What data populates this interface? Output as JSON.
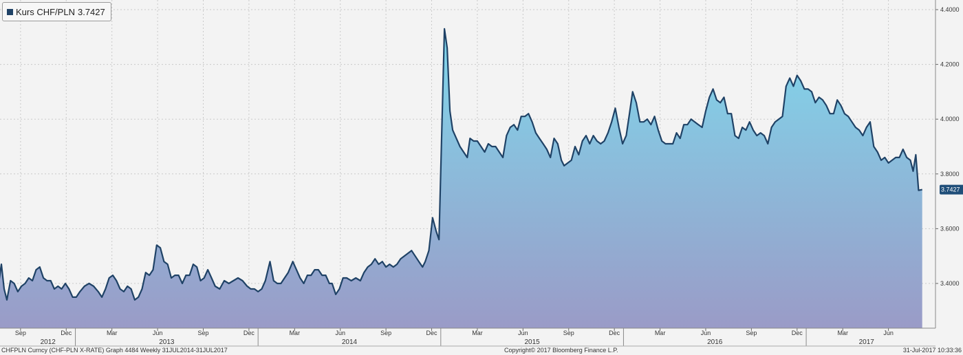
{
  "legend": {
    "label": "Kurs CHF/PLN",
    "last_value": "3.7427"
  },
  "footer": {
    "left": "CHFPLN Curncy (CHF-PLN X-RATE) Graph 4484  Weekly 31JUL2014-31JUL2017",
    "center": "Copyright© 2017 Bloomberg Finance L.P.",
    "right": "31-Jul-2017 10:33:36"
  },
  "colors": {
    "line": "#1f4266",
    "fill_top": "#7fd8ec",
    "fill_bottom": "#9a9bc7",
    "last_badge": "#1f4e79"
  },
  "chart_data": {
    "type": "area",
    "title": "",
    "xlabel": "",
    "ylabel": "",
    "ylim": [
      3.25,
      4.4
    ],
    "yticks": [
      "3.4000",
      "3.6000",
      "3.8000",
      "4.0000",
      "4.2000",
      "4.4000"
    ],
    "grid": true,
    "legend_position": "top-left",
    "month_ticks": [
      {
        "m": 2012.7,
        "label": "Sep"
      },
      {
        "m": 2012.95,
        "label": "Dec"
      },
      {
        "m": 2013.2,
        "label": "Mar"
      },
      {
        "m": 2013.45,
        "label": "Jun"
      },
      {
        "m": 2013.7,
        "label": "Sep"
      },
      {
        "m": 2013.95,
        "label": "Dec"
      },
      {
        "m": 2014.2,
        "label": "Mar"
      },
      {
        "m": 2014.45,
        "label": "Jun"
      },
      {
        "m": 2014.7,
        "label": "Sep"
      },
      {
        "m": 2014.95,
        "label": "Dec"
      },
      {
        "m": 2015.2,
        "label": "Mar"
      },
      {
        "m": 2015.45,
        "label": "Jun"
      },
      {
        "m": 2015.7,
        "label": "Sep"
      },
      {
        "m": 2015.95,
        "label": "Dec"
      },
      {
        "m": 2016.2,
        "label": "Mar"
      },
      {
        "m": 2016.45,
        "label": "Jun"
      },
      {
        "m": 2016.7,
        "label": "Sep"
      },
      {
        "m": 2016.95,
        "label": "Dec"
      },
      {
        "m": 2017.2,
        "label": "Mar"
      },
      {
        "m": 2017.45,
        "label": "Jun"
      }
    ],
    "years": [
      {
        "m": 2012.85,
        "label": "2012"
      },
      {
        "m": 2013.5,
        "label": "2013"
      },
      {
        "m": 2014.5,
        "label": "2014"
      },
      {
        "m": 2015.5,
        "label": "2015"
      },
      {
        "m": 2016.5,
        "label": "2016"
      },
      {
        "m": 2017.33,
        "label": "2017"
      }
    ],
    "year_separators": [
      2013.0,
      2014.0,
      2015.0,
      2016.0,
      2017.0
    ],
    "series": [
      {
        "name": "Kurs CHF/PLN",
        "points": [
          [
            2012.58,
            3.4
          ],
          [
            2012.595,
            3.47
          ],
          [
            2012.61,
            3.38
          ],
          [
            2012.625,
            3.34
          ],
          [
            2012.645,
            3.41
          ],
          [
            2012.665,
            3.4
          ],
          [
            2012.685,
            3.37
          ],
          [
            2012.705,
            3.39
          ],
          [
            2012.725,
            3.4
          ],
          [
            2012.745,
            3.42
          ],
          [
            2012.765,
            3.41
          ],
          [
            2012.785,
            3.45
          ],
          [
            2012.805,
            3.46
          ],
          [
            2012.825,
            3.42
          ],
          [
            2012.845,
            3.41
          ],
          [
            2012.865,
            3.41
          ],
          [
            2012.885,
            3.38
          ],
          [
            2012.905,
            3.39
          ],
          [
            2012.925,
            3.38
          ],
          [
            2012.945,
            3.4
          ],
          [
            2012.965,
            3.38
          ],
          [
            2012.985,
            3.35
          ],
          [
            2013.005,
            3.35
          ],
          [
            2013.025,
            3.37
          ],
          [
            2013.05,
            3.39
          ],
          [
            2013.075,
            3.4
          ],
          [
            2013.1,
            3.39
          ],
          [
            2013.125,
            3.37
          ],
          [
            2013.145,
            3.35
          ],
          [
            2013.165,
            3.38
          ],
          [
            2013.185,
            3.42
          ],
          [
            2013.205,
            3.43
          ],
          [
            2013.225,
            3.41
          ],
          [
            2013.245,
            3.38
          ],
          [
            2013.265,
            3.37
          ],
          [
            2013.285,
            3.39
          ],
          [
            2013.305,
            3.38
          ],
          [
            2013.325,
            3.34
          ],
          [
            2013.345,
            3.35
          ],
          [
            2013.365,
            3.38
          ],
          [
            2013.385,
            3.44
          ],
          [
            2013.405,
            3.43
          ],
          [
            2013.425,
            3.45
          ],
          [
            2013.445,
            3.54
          ],
          [
            2013.465,
            3.53
          ],
          [
            2013.485,
            3.48
          ],
          [
            2013.505,
            3.47
          ],
          [
            2013.525,
            3.42
          ],
          [
            2013.545,
            3.43
          ],
          [
            2013.565,
            3.43
          ],
          [
            2013.585,
            3.4
          ],
          [
            2013.605,
            3.43
          ],
          [
            2013.625,
            3.43
          ],
          [
            2013.645,
            3.47
          ],
          [
            2013.665,
            3.46
          ],
          [
            2013.685,
            3.41
          ],
          [
            2013.705,
            3.42
          ],
          [
            2013.725,
            3.45
          ],
          [
            2013.745,
            3.42
          ],
          [
            2013.765,
            3.39
          ],
          [
            2013.79,
            3.38
          ],
          [
            2013.815,
            3.41
          ],
          [
            2013.84,
            3.4
          ],
          [
            2013.865,
            3.41
          ],
          [
            2013.89,
            3.42
          ],
          [
            2013.915,
            3.41
          ],
          [
            2013.94,
            3.39
          ],
          [
            2013.96,
            3.38
          ],
          [
            2013.98,
            3.38
          ],
          [
            2014.0,
            3.37
          ],
          [
            2014.02,
            3.38
          ],
          [
            2014.04,
            3.41
          ],
          [
            2014.065,
            3.48
          ],
          [
            2014.085,
            3.41
          ],
          [
            2014.105,
            3.4
          ],
          [
            2014.125,
            3.4
          ],
          [
            2014.145,
            3.42
          ],
          [
            2014.165,
            3.44
          ],
          [
            2014.19,
            3.48
          ],
          [
            2014.21,
            3.45
          ],
          [
            2014.23,
            3.42
          ],
          [
            2014.25,
            3.4
          ],
          [
            2014.27,
            3.43
          ],
          [
            2014.29,
            3.43
          ],
          [
            2014.31,
            3.45
          ],
          [
            2014.33,
            3.45
          ],
          [
            2014.35,
            3.43
          ],
          [
            2014.37,
            3.43
          ],
          [
            2014.39,
            3.4
          ],
          [
            2014.405,
            3.4
          ],
          [
            2014.425,
            3.36
          ],
          [
            2014.445,
            3.38
          ],
          [
            2014.465,
            3.42
          ],
          [
            2014.485,
            3.42
          ],
          [
            2014.51,
            3.41
          ],
          [
            2014.535,
            3.42
          ],
          [
            2014.56,
            3.41
          ],
          [
            2014.58,
            3.44
          ],
          [
            2014.6,
            3.46
          ],
          [
            2014.62,
            3.47
          ],
          [
            2014.64,
            3.49
          ],
          [
            2014.66,
            3.47
          ],
          [
            2014.68,
            3.48
          ],
          [
            2014.7,
            3.46
          ],
          [
            2014.72,
            3.47
          ],
          [
            2014.74,
            3.46
          ],
          [
            2014.76,
            3.47
          ],
          [
            2014.78,
            3.49
          ],
          [
            2014.8,
            3.5
          ],
          [
            2014.82,
            3.51
          ],
          [
            2014.84,
            3.52
          ],
          [
            2014.86,
            3.5
          ],
          [
            2014.88,
            3.48
          ],
          [
            2014.9,
            3.46
          ],
          [
            2014.915,
            3.48
          ],
          [
            2014.935,
            3.52
          ],
          [
            2014.955,
            3.64
          ],
          [
            2014.975,
            3.59
          ],
          [
            2014.99,
            3.56
          ],
          [
            2015.02,
            4.33
          ],
          [
            2015.035,
            4.26
          ],
          [
            2015.05,
            4.03
          ],
          [
            2015.065,
            3.96
          ],
          [
            2015.085,
            3.93
          ],
          [
            2015.105,
            3.9
          ],
          [
            2015.125,
            3.88
          ],
          [
            2015.145,
            3.86
          ],
          [
            2015.16,
            3.93
          ],
          [
            2015.18,
            3.92
          ],
          [
            2015.2,
            3.92
          ],
          [
            2015.22,
            3.9
          ],
          [
            2015.24,
            3.88
          ],
          [
            2015.26,
            3.91
          ],
          [
            2015.28,
            3.9
          ],
          [
            2015.3,
            3.9
          ],
          [
            2015.32,
            3.88
          ],
          [
            2015.34,
            3.86
          ],
          [
            2015.36,
            3.94
          ],
          [
            2015.38,
            3.97
          ],
          [
            2015.4,
            3.98
          ],
          [
            2015.42,
            3.96
          ],
          [
            2015.44,
            4.01
          ],
          [
            2015.46,
            4.01
          ],
          [
            2015.48,
            4.02
          ],
          [
            2015.5,
            3.99
          ],
          [
            2015.52,
            3.95
          ],
          [
            2015.54,
            3.93
          ],
          [
            2015.56,
            3.91
          ],
          [
            2015.58,
            3.89
          ],
          [
            2015.6,
            3.86
          ],
          [
            2015.62,
            3.93
          ],
          [
            2015.64,
            3.91
          ],
          [
            2015.66,
            3.85
          ],
          [
            2015.675,
            3.83
          ],
          [
            2015.695,
            3.84
          ],
          [
            2015.715,
            3.85
          ],
          [
            2015.735,
            3.9
          ],
          [
            2015.755,
            3.87
          ],
          [
            2015.775,
            3.92
          ],
          [
            2015.795,
            3.94
          ],
          [
            2015.815,
            3.91
          ],
          [
            2015.835,
            3.94
          ],
          [
            2015.855,
            3.92
          ],
          [
            2015.875,
            3.91
          ],
          [
            2015.895,
            3.92
          ],
          [
            2015.915,
            3.95
          ],
          [
            2015.935,
            3.99
          ],
          [
            2015.955,
            4.04
          ],
          [
            2015.975,
            3.97
          ],
          [
            2015.995,
            3.91
          ],
          [
            2016.015,
            3.94
          ],
          [
            2016.035,
            4.03
          ],
          [
            2016.05,
            4.1
          ],
          [
            2016.07,
            4.06
          ],
          [
            2016.09,
            3.99
          ],
          [
            2016.11,
            3.99
          ],
          [
            2016.13,
            4.0
          ],
          [
            2016.15,
            3.98
          ],
          [
            2016.17,
            4.01
          ],
          [
            2016.19,
            3.96
          ],
          [
            2016.21,
            3.92
          ],
          [
            2016.23,
            3.91
          ],
          [
            2016.25,
            3.91
          ],
          [
            2016.27,
            3.91
          ],
          [
            2016.29,
            3.95
          ],
          [
            2016.31,
            3.93
          ],
          [
            2016.33,
            3.98
          ],
          [
            2016.35,
            3.98
          ],
          [
            2016.37,
            4.0
          ],
          [
            2016.39,
            3.99
          ],
          [
            2016.41,
            3.98
          ],
          [
            2016.43,
            3.97
          ],
          [
            2016.45,
            4.03
          ],
          [
            2016.47,
            4.08
          ],
          [
            2016.49,
            4.11
          ],
          [
            2016.51,
            4.07
          ],
          [
            2016.53,
            4.06
          ],
          [
            2016.55,
            4.08
          ],
          [
            2016.57,
            4.02
          ],
          [
            2016.59,
            4.02
          ],
          [
            2016.61,
            3.94
          ],
          [
            2016.63,
            3.93
          ],
          [
            2016.65,
            3.97
          ],
          [
            2016.67,
            3.96
          ],
          [
            2016.69,
            3.99
          ],
          [
            2016.71,
            3.96
          ],
          [
            2016.73,
            3.94
          ],
          [
            2016.75,
            3.95
          ],
          [
            2016.77,
            3.94
          ],
          [
            2016.79,
            3.91
          ],
          [
            2016.81,
            3.97
          ],
          [
            2016.83,
            3.99
          ],
          [
            2016.85,
            4.0
          ],
          [
            2016.87,
            4.01
          ],
          [
            2016.89,
            4.12
          ],
          [
            2016.91,
            4.15
          ],
          [
            2016.93,
            4.12
          ],
          [
            2016.95,
            4.16
          ],
          [
            2016.97,
            4.14
          ],
          [
            2016.99,
            4.11
          ],
          [
            2017.01,
            4.11
          ],
          [
            2017.03,
            4.1
          ],
          [
            2017.05,
            4.06
          ],
          [
            2017.07,
            4.08
          ],
          [
            2017.09,
            4.07
          ],
          [
            2017.11,
            4.05
          ],
          [
            2017.13,
            4.02
          ],
          [
            2017.15,
            4.02
          ],
          [
            2017.17,
            4.07
          ],
          [
            2017.19,
            4.05
          ],
          [
            2017.21,
            4.02
          ],
          [
            2017.23,
            4.01
          ],
          [
            2017.25,
            3.99
          ],
          [
            2017.27,
            3.97
          ],
          [
            2017.29,
            3.96
          ],
          [
            2017.31,
            3.94
          ],
          [
            2017.33,
            3.97
          ],
          [
            2017.35,
            3.99
          ],
          [
            2017.37,
            3.9
          ],
          [
            2017.39,
            3.88
          ],
          [
            2017.41,
            3.85
          ],
          [
            2017.43,
            3.86
          ],
          [
            2017.45,
            3.84
          ],
          [
            2017.47,
            3.85
          ],
          [
            2017.49,
            3.86
          ],
          [
            2017.51,
            3.86
          ],
          [
            2017.53,
            3.89
          ],
          [
            2017.55,
            3.86
          ],
          [
            2017.57,
            3.85
          ],
          [
            2017.585,
            3.81
          ],
          [
            2017.6,
            3.87
          ],
          [
            2017.615,
            3.74
          ],
          [
            2017.635,
            3.7427
          ]
        ]
      }
    ]
  }
}
